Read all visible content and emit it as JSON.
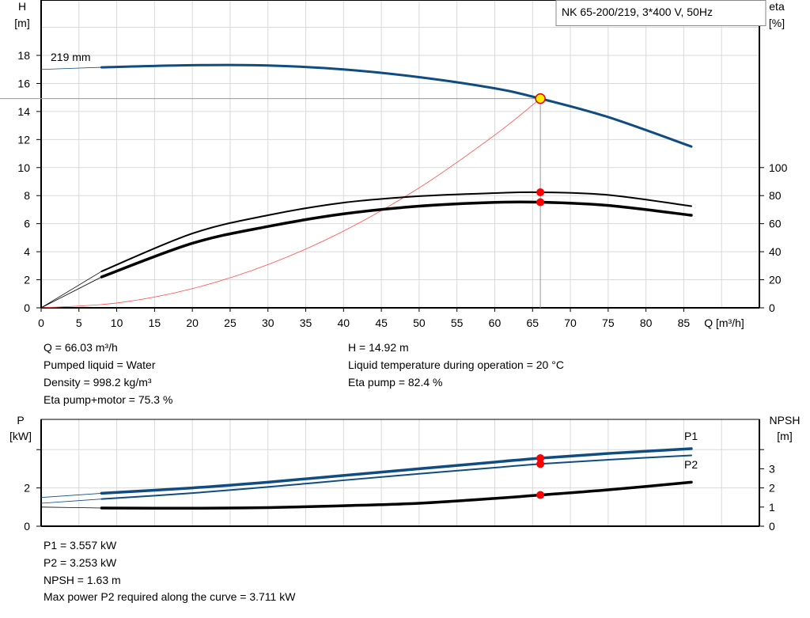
{
  "title_box": "NK 65-200/219, 3*400 V, 50Hz",
  "colors": {
    "blue": "#0f4c81",
    "black": "#000000",
    "system": "#ff4d4d",
    "point": "#ff0000",
    "op_fill": "#ffee00",
    "grid": "#d9d9d9"
  },
  "chart_data": [
    {
      "type": "line",
      "ylabel_left": [
        "H",
        "[m]"
      ],
      "ylabel_right": [
        "eta",
        "[%]"
      ],
      "xlabel": "Q [m³/h]",
      "xlim": [
        0,
        95
      ],
      "ylim": [
        0,
        21.95
      ],
      "x_ticks": [
        0,
        5,
        10,
        15,
        20,
        25,
        30,
        35,
        40,
        45,
        50,
        55,
        60,
        65,
        70,
        75,
        80,
        85
      ],
      "y_ticks_left": [
        0,
        2,
        4,
        6,
        8,
        10,
        12,
        14,
        16,
        18
      ],
      "y_ticks_right": [
        0,
        20,
        40,
        60,
        80,
        100
      ],
      "grid": true,
      "curve_label": "219 mm",
      "series": [
        {
          "key": "H",
          "unit": "m",
          "color": "#0f4c81",
          "points": [
            [
              0,
              17.0
            ],
            [
              8,
              17.15
            ],
            [
              20,
              17.3
            ],
            [
              30,
              17.28
            ],
            [
              40,
              17.0
            ],
            [
              50,
              16.45
            ],
            [
              60,
              15.65
            ],
            [
              66.03,
              14.92
            ],
            [
              75,
              13.6
            ],
            [
              86,
              11.5
            ]
          ]
        },
        {
          "key": "eta_pump",
          "unit": "%",
          "color": "#000000",
          "points": [
            [
              0,
              0
            ],
            [
              8,
              26
            ],
            [
              20,
              53
            ],
            [
              30,
              66
            ],
            [
              40,
              75
            ],
            [
              50,
              79.6
            ],
            [
              60,
              81.8
            ],
            [
              66.03,
              82.4
            ],
            [
              75,
              80.5
            ],
            [
              86,
              72.5
            ]
          ]
        },
        {
          "key": "eta_pump_motor",
          "unit": "%",
          "color": "#000000",
          "points": [
            [
              0,
              0
            ],
            [
              8,
              22
            ],
            [
              20,
              46
            ],
            [
              30,
              58
            ],
            [
              40,
              67
            ],
            [
              50,
              72.5
            ],
            [
              60,
              75.2
            ],
            [
              66.03,
              75.3
            ],
            [
              75,
              73
            ],
            [
              86,
              66
            ]
          ]
        },
        {
          "key": "system",
          "unit": "m",
          "color": "#ff4d4d",
          "points": [
            [
              0,
              0
            ],
            [
              10,
              0.342
            ],
            [
              20,
              1.369
            ],
            [
              30,
              3.08
            ],
            [
              40,
              5.475
            ],
            [
              50,
              8.555
            ],
            [
              60,
              12.32
            ],
            [
              66.03,
              14.92
            ]
          ]
        }
      ],
      "operating_point": {
        "Q": 66.03,
        "H": 14.92,
        "eta_pump": 82.4,
        "eta_pump_motor": 75.3
      }
    },
    {
      "type": "line",
      "ylabel_left": [
        "P",
        "[kW]"
      ],
      "ylabel_right": [
        "NPSH",
        "[m]"
      ],
      "xlim": [
        0,
        95
      ],
      "ylim": [
        0,
        5.58
      ],
      "y_ticks_left": [
        {
          "v": 0,
          "label": "0"
        },
        {
          "v": 2,
          "label": "2"
        },
        {
          "v": 4,
          "label": ""
        }
      ],
      "y_ticks_right": [
        {
          "v": 0,
          "label": "0"
        },
        {
          "v": 1,
          "label": "1"
        },
        {
          "v": 2,
          "label": "2"
        },
        {
          "v": 3,
          "label": "3"
        },
        {
          "v": 4,
          "label": ""
        }
      ],
      "grid": true,
      "series": [
        {
          "key": "P1",
          "name": "P1",
          "unit": "kW",
          "color": "#0f4c81",
          "points": [
            [
              0,
              1.5
            ],
            [
              8,
              1.72
            ],
            [
              20,
              2.0
            ],
            [
              30,
              2.3
            ],
            [
              40,
              2.65
            ],
            [
              50,
              3.0
            ],
            [
              60,
              3.35
            ],
            [
              66.03,
              3.557
            ],
            [
              75,
              3.8
            ],
            [
              86,
              4.05
            ]
          ]
        },
        {
          "key": "P2",
          "name": "P2",
          "unit": "kW",
          "color": "#0f4c81",
          "points": [
            [
              0,
              1.2
            ],
            [
              8,
              1.42
            ],
            [
              20,
              1.73
            ],
            [
              30,
              2.05
            ],
            [
              40,
              2.4
            ],
            [
              50,
              2.74
            ],
            [
              60,
              3.06
            ],
            [
              66.03,
              3.253
            ],
            [
              75,
              3.47
            ],
            [
              86,
              3.7
            ]
          ]
        },
        {
          "key": "NPSH",
          "unit": "m",
          "color": "#000000",
          "points": [
            [
              0,
              1.0
            ],
            [
              8,
              0.95
            ],
            [
              20,
              0.94
            ],
            [
              30,
              0.97
            ],
            [
              40,
              1.07
            ],
            [
              50,
              1.2
            ],
            [
              60,
              1.45
            ],
            [
              66.03,
              1.63
            ],
            [
              75,
              1.9
            ],
            [
              86,
              2.3
            ]
          ]
        }
      ],
      "operating_point": {
        "Q": 66.03,
        "P1": 3.557,
        "P2": 3.253,
        "NPSH": 1.63
      }
    }
  ],
  "info_top": {
    "left": [
      "Q = 66.03 m³/h",
      "Pumped liquid = Water",
      "Density = 998.2 kg/m³",
      "Eta pump+motor = 75.3 %"
    ],
    "right": [
      "H = 14.92 m",
      "Liquid temperature during operation = 20 °C",
      "Eta pump = 82.4 %"
    ]
  },
  "info_bottom": [
    "P1 = 3.557 kW",
    "P2 = 3.253 kW",
    "NPSH = 1.63 m",
    "Max power P2 required along the curve = 3.711 kW"
  ]
}
